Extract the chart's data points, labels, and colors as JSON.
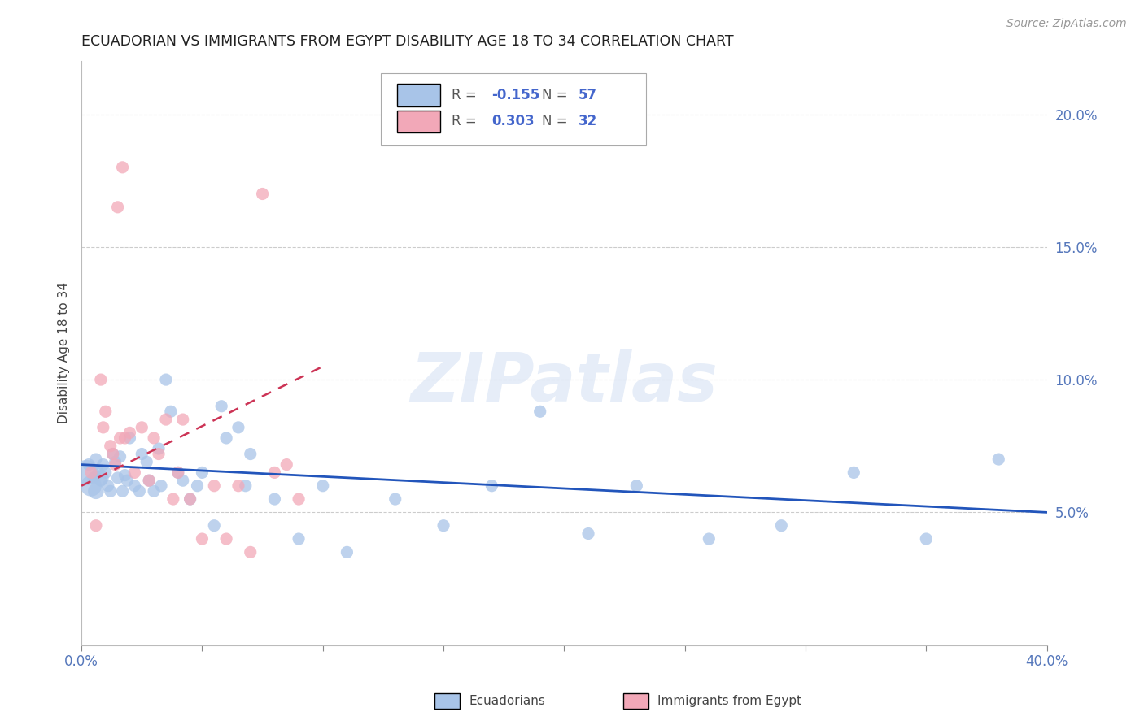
{
  "title": "ECUADORIAN VS IMMIGRANTS FROM EGYPT DISABILITY AGE 18 TO 34 CORRELATION CHART",
  "source": "Source: ZipAtlas.com",
  "ylabel": "Disability Age 18 to 34",
  "watermark": "ZIPatlas",
  "xlim": [
    0.0,
    0.4
  ],
  "ylim": [
    0.0,
    0.22
  ],
  "xticks": [
    0.0,
    0.05,
    0.1,
    0.15,
    0.2,
    0.25,
    0.3,
    0.35,
    0.4
  ],
  "xtick_labels_show": [
    "0.0%",
    "",
    "",
    "",
    "",
    "",
    "",
    "",
    "40.0%"
  ],
  "yticks_right": [
    0.05,
    0.1,
    0.15,
    0.2
  ],
  "ytick_labels_right": [
    "5.0%",
    "10.0%",
    "15.0%",
    "20.0%"
  ],
  "blue_color": "#a8c4e8",
  "pink_color": "#f2a8b8",
  "trend_blue_color": "#2255bb",
  "trend_pink_color": "#cc3355",
  "grid_color": "#cccccc",
  "blue_label": "Ecuadorians",
  "pink_label": "Immigrants from Egypt",
  "R_blue": "-0.155",
  "N_blue": "57",
  "R_pink": "0.303",
  "N_pink": "32",
  "blue_points_x": [
    0.003,
    0.005,
    0.006,
    0.007,
    0.008,
    0.009,
    0.01,
    0.011,
    0.012,
    0.013,
    0.014,
    0.015,
    0.016,
    0.017,
    0.018,
    0.019,
    0.02,
    0.022,
    0.024,
    0.025,
    0.027,
    0.028,
    0.03,
    0.032,
    0.033,
    0.035,
    0.037,
    0.04,
    0.042,
    0.045,
    0.048,
    0.05,
    0.055,
    0.058,
    0.06,
    0.065,
    0.068,
    0.07,
    0.08,
    0.09,
    0.1,
    0.11,
    0.13,
    0.15,
    0.17,
    0.19,
    0.21,
    0.23,
    0.26,
    0.29,
    0.32,
    0.35,
    0.38,
    0.004,
    0.006,
    0.008,
    0.002
  ],
  "blue_points_y": [
    0.068,
    0.063,
    0.07,
    0.065,
    0.062,
    0.068,
    0.065,
    0.06,
    0.058,
    0.072,
    0.069,
    0.063,
    0.071,
    0.058,
    0.064,
    0.062,
    0.078,
    0.06,
    0.058,
    0.072,
    0.069,
    0.062,
    0.058,
    0.074,
    0.06,
    0.1,
    0.088,
    0.065,
    0.062,
    0.055,
    0.06,
    0.065,
    0.045,
    0.09,
    0.078,
    0.082,
    0.06,
    0.072,
    0.055,
    0.04,
    0.06,
    0.035,
    0.055,
    0.045,
    0.06,
    0.088,
    0.042,
    0.06,
    0.04,
    0.045,
    0.065,
    0.04,
    0.07,
    0.06,
    0.058,
    0.063,
    0.065
  ],
  "blue_sizes": [
    120,
    120,
    120,
    120,
    120,
    120,
    120,
    120,
    120,
    120,
    120,
    120,
    120,
    120,
    120,
    120,
    120,
    120,
    120,
    120,
    120,
    120,
    120,
    120,
    120,
    120,
    120,
    120,
    120,
    120,
    120,
    120,
    120,
    120,
    120,
    120,
    120,
    120,
    120,
    120,
    120,
    120,
    120,
    120,
    120,
    120,
    120,
    120,
    120,
    120,
    120,
    120,
    120,
    350,
    200,
    200,
    500
  ],
  "pink_points_x": [
    0.004,
    0.006,
    0.008,
    0.009,
    0.01,
    0.012,
    0.013,
    0.014,
    0.015,
    0.016,
    0.017,
    0.018,
    0.02,
    0.022,
    0.025,
    0.028,
    0.03,
    0.032,
    0.035,
    0.038,
    0.04,
    0.042,
    0.045,
    0.05,
    0.055,
    0.06,
    0.065,
    0.07,
    0.075,
    0.08,
    0.085,
    0.09
  ],
  "pink_points_y": [
    0.065,
    0.045,
    0.1,
    0.082,
    0.088,
    0.075,
    0.072,
    0.068,
    0.165,
    0.078,
    0.18,
    0.078,
    0.08,
    0.065,
    0.082,
    0.062,
    0.078,
    0.072,
    0.085,
    0.055,
    0.065,
    0.085,
    0.055,
    0.04,
    0.06,
    0.04,
    0.06,
    0.035,
    0.17,
    0.065,
    0.068,
    0.055
  ],
  "pink_sizes": [
    120,
    120,
    120,
    120,
    120,
    120,
    120,
    120,
    120,
    120,
    120,
    120,
    120,
    120,
    120,
    120,
    120,
    120,
    120,
    120,
    120,
    120,
    120,
    120,
    120,
    120,
    120,
    120,
    120,
    120,
    120,
    120
  ],
  "blue_trend_x": [
    0.0,
    0.4
  ],
  "blue_trend_y_start": 0.068,
  "blue_trend_y_end": 0.05,
  "pink_trend_x": [
    0.0,
    0.1
  ],
  "pink_trend_y_start": 0.06,
  "pink_trend_y_end": 0.105
}
